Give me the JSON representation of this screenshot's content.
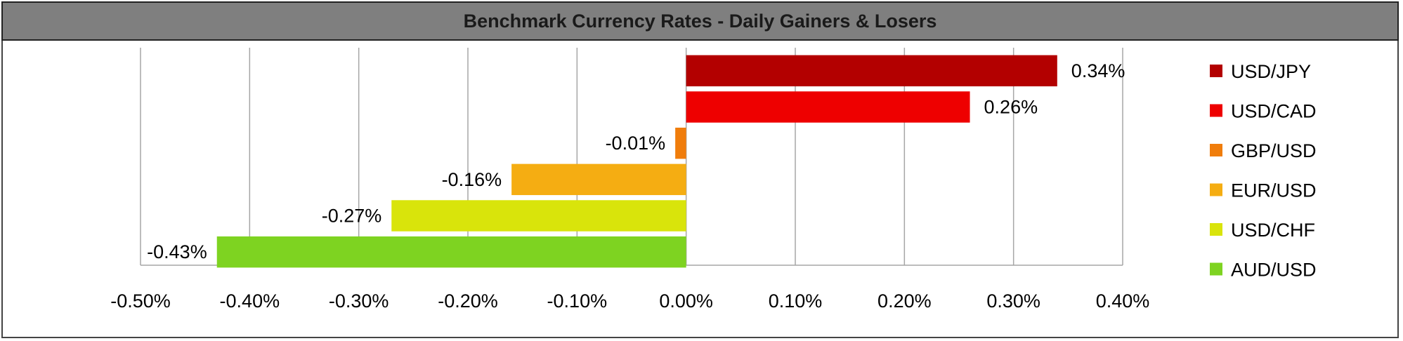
{
  "chart_data": {
    "type": "bar",
    "orientation": "horizontal",
    "title": "Benchmark Currency Rates - Daily Gainers & Losers",
    "categories": [
      "USD/JPY",
      "USD/CAD",
      "GBP/USD",
      "EUR/USD",
      "USD/CHF",
      "AUD/USD"
    ],
    "values": [
      0.34,
      0.26,
      -0.01,
      -0.16,
      -0.27,
      -0.43
    ],
    "data_labels": [
      "0.34%",
      "0.26%",
      "-0.01%",
      "-0.16%",
      "-0.27%",
      "-0.43%"
    ],
    "colors": [
      "#b30000",
      "#ee0000",
      "#f07d0b",
      "#f5ad12",
      "#d9e40b",
      "#7ed321"
    ],
    "x_ticks": [
      -0.5,
      -0.4,
      -0.3,
      -0.2,
      -0.1,
      0.0,
      0.1,
      0.2,
      0.3,
      0.4
    ],
    "x_tick_labels": [
      "-0.50%",
      "-0.40%",
      "-0.30%",
      "-0.20%",
      "-0.10%",
      "0.00%",
      "0.10%",
      "0.20%",
      "0.30%",
      "0.40%"
    ],
    "xlim": [
      -0.5,
      0.4
    ],
    "grid": true,
    "legend_position": "right",
    "legend_entries": [
      "USD/JPY",
      "USD/CAD",
      "GBP/USD",
      "EUR/USD",
      "USD/CHF",
      "AUD/USD"
    ]
  }
}
